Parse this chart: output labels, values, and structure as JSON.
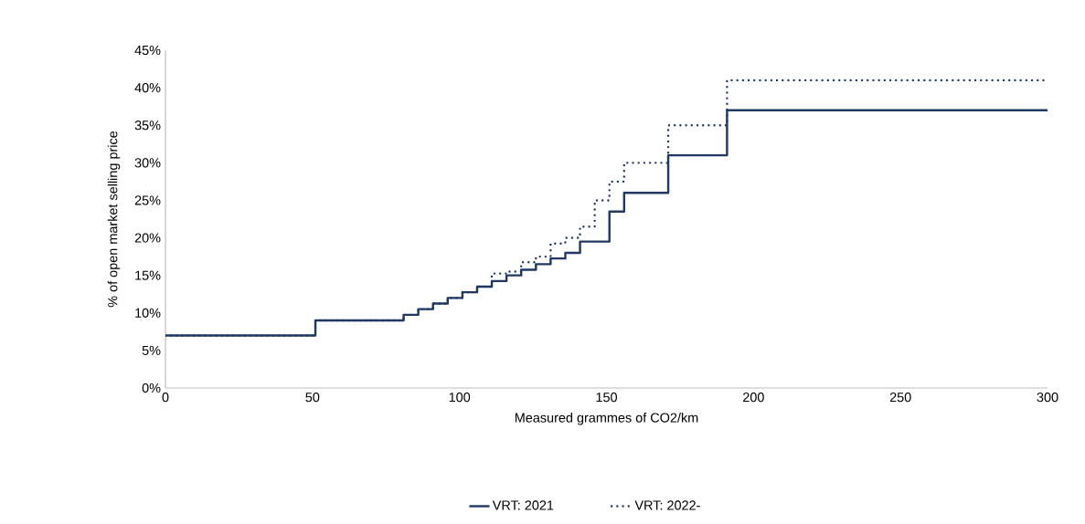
{
  "chart_data": {
    "type": "step",
    "xlabel": "Measured grammes of CO2/km",
    "ylabel": "% of open market selling price",
    "xlim": [
      0,
      300
    ],
    "xticks": [
      0,
      50,
      100,
      150,
      200,
      250,
      300
    ],
    "ylim": [
      0,
      45
    ],
    "yticks": [
      {
        "value": 0,
        "label": "0%"
      },
      {
        "value": 5,
        "label": "5%"
      },
      {
        "value": 10,
        "label": "10%"
      },
      {
        "value": 15,
        "label": "15%"
      },
      {
        "value": 20,
        "label": "20%"
      },
      {
        "value": 25,
        "label": "25%"
      },
      {
        "value": 30,
        "label": "30%"
      },
      {
        "value": 35,
        "label": "35%"
      },
      {
        "value": 40,
        "label": "40%"
      },
      {
        "value": 45,
        "label": "45%"
      }
    ],
    "legend": "bottom",
    "series": [
      {
        "name": "VRT: 2021",
        "color": "#1f3864",
        "line_style": "solid",
        "x": [
          0,
          51,
          81,
          86,
          91,
          96,
          101,
          106,
          111,
          116,
          121,
          126,
          131,
          136,
          141,
          151,
          156,
          171,
          191,
          300
        ],
        "values": [
          7,
          9,
          9.75,
          10.5,
          11.25,
          12,
          12.75,
          13.5,
          14.25,
          15,
          15.75,
          16.5,
          17.25,
          18,
          19.5,
          23.5,
          26,
          31,
          37,
          37
        ]
      },
      {
        "name": "VRT: 2022-",
        "color": "#1f3864",
        "line_style": "dotted",
        "x": [
          0,
          51,
          81,
          86,
          91,
          96,
          101,
          106,
          111,
          116,
          121,
          126,
          131,
          136,
          141,
          146,
          151,
          156,
          171,
          191,
          300
        ],
        "values": [
          7,
          9,
          9.75,
          10.5,
          11.25,
          12,
          12.75,
          13.5,
          15.25,
          15.5,
          16.75,
          17.5,
          19.25,
          20,
          21.5,
          25,
          27.5,
          30,
          35,
          41,
          41
        ]
      }
    ]
  }
}
